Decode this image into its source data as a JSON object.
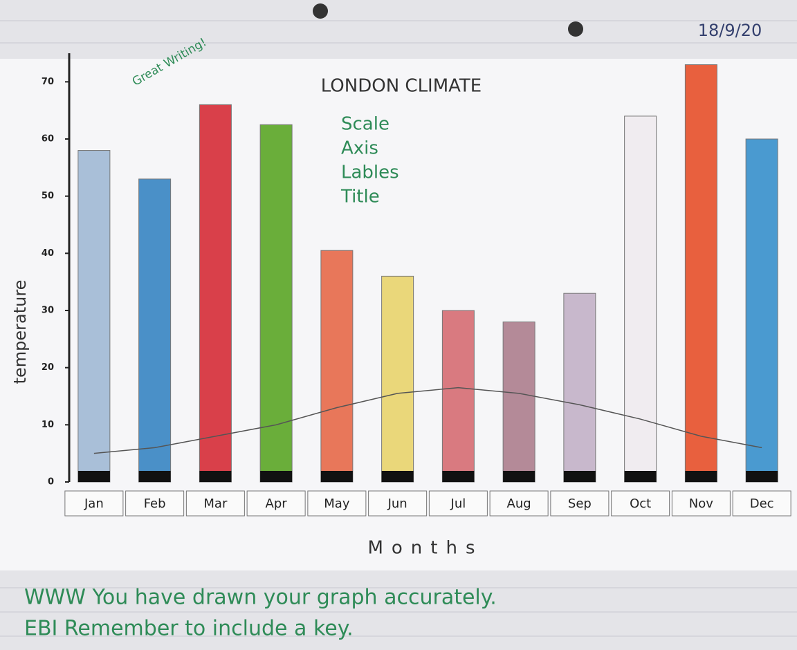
{
  "chart_data": {
    "type": "bar",
    "title": "LONDON CLIMATE",
    "date": "18/9/20",
    "stamp": "Great Writing!",
    "notes": [
      "Scale",
      "Axis",
      "Lables",
      "Title"
    ],
    "ylabel": "temperature",
    "xlabel": "Months",
    "feedback": [
      "WWW You have drawn your graph accurately.",
      "EBI Remember to include a key."
    ],
    "categories": [
      "Jan",
      "Feb",
      "Mar",
      "Apr",
      "May",
      "Jun",
      "Jul",
      "Aug",
      "Sep",
      "Oct",
      "Nov",
      "Dec"
    ],
    "series": [
      {
        "type": "bar",
        "colors": [
          "#a9bfd8",
          "#4a90c8",
          "#d9404a",
          "#6aae3a",
          "#e8775a",
          "#ead77a",
          "#d97a80",
          "#b48a98",
          "#c8b8cc",
          "#f0ecf0",
          "#e8603e",
          "#4a9ad0"
        ],
        "values": [
          58,
          53,
          66,
          62.5,
          40.5,
          36,
          30,
          28,
          33,
          64,
          73,
          60
        ]
      },
      {
        "type": "line",
        "color": "#555555",
        "values": [
          5,
          6,
          8,
          10,
          13,
          15.5,
          16.5,
          15.5,
          13.5,
          11,
          8,
          6
        ]
      }
    ],
    "ylim": [
      0,
      75
    ],
    "yticks": [
      0,
      10,
      20,
      30,
      40,
      50,
      60,
      70
    ]
  }
}
